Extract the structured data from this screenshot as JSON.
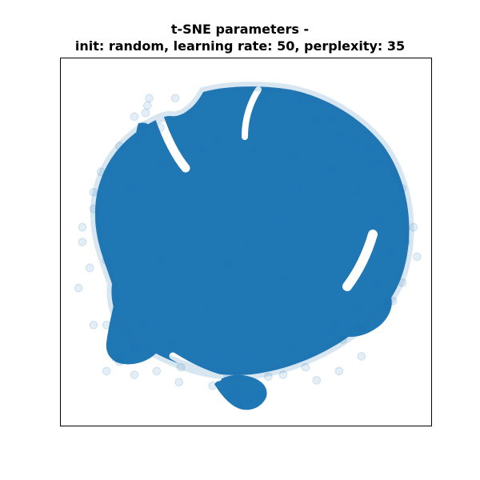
{
  "chart_data": {
    "type": "scatter",
    "title": "t-SNE parameters -\ninit: random, learning rate: 50, perplexity: 35",
    "xlabel": "",
    "ylabel": "",
    "grid": false,
    "legend": "none",
    "axis_ticks": false,
    "series": [
      {
        "color": "#1f77b4",
        "alpha": 0.12,
        "points": [
          [
            -0.15,
            0.55
          ],
          [
            0.05,
            0.5
          ],
          [
            0.25,
            0.48
          ],
          [
            0.45,
            0.4
          ],
          [
            0.6,
            0.28
          ],
          [
            0.72,
            0.12
          ],
          [
            0.78,
            -0.05
          ],
          [
            0.7,
            -0.22
          ],
          [
            0.6,
            -0.35
          ],
          [
            0.45,
            -0.48
          ],
          [
            0.25,
            -0.58
          ],
          [
            0.02,
            -0.62
          ],
          [
            -0.2,
            -0.6
          ],
          [
            -0.4,
            -0.55
          ],
          [
            -0.55,
            -0.45
          ],
          [
            -0.68,
            -0.3
          ],
          [
            -0.75,
            -0.1
          ],
          [
            -0.72,
            0.1
          ],
          [
            -0.62,
            0.28
          ],
          [
            -0.45,
            0.42
          ],
          [
            -0.25,
            0.5
          ],
          [
            0.0,
            0.0
          ],
          [
            0.15,
            0.1
          ],
          [
            -0.1,
            -0.12
          ],
          [
            0.2,
            -0.2
          ],
          [
            -0.3,
            0.15
          ],
          [
            0.4,
            0.05
          ],
          [
            -0.45,
            -0.1
          ],
          [
            0.3,
            0.3
          ],
          [
            -0.2,
            -0.35
          ],
          [
            -0.58,
            0.55
          ],
          [
            -0.55,
            0.63
          ],
          [
            -0.54,
            0.7
          ],
          [
            -0.6,
            0.68
          ],
          [
            -0.52,
            0.78
          ],
          [
            0.48,
            -0.45
          ],
          [
            0.52,
            -0.53
          ],
          [
            0.62,
            -0.46
          ],
          [
            -0.6,
            -0.58
          ],
          [
            -0.68,
            -0.65
          ],
          [
            -0.75,
            -0.7
          ],
          [
            -0.08,
            -0.84
          ],
          [
            -0.03,
            -0.88
          ],
          [
            0.02,
            -0.85
          ],
          [
            0.1,
            0.78
          ],
          [
            0.18,
            0.74
          ],
          [
            0.3,
            0.76
          ],
          [
            0.38,
            0.66
          ],
          [
            0.5,
            0.58
          ],
          [
            0.66,
            0.4
          ],
          [
            0.8,
            0.2
          ],
          [
            0.86,
            0.0
          ],
          [
            0.92,
            -0.08
          ],
          [
            0.84,
            -0.22
          ],
          [
            0.76,
            -0.35
          ],
          [
            0.62,
            -0.62
          ],
          [
            0.5,
            -0.7
          ],
          [
            0.38,
            -0.75
          ],
          [
            0.2,
            -0.72
          ],
          [
            0.08,
            -0.82
          ],
          [
            -0.1,
            -0.72
          ],
          [
            -0.35,
            -0.68
          ],
          [
            -0.48,
            -0.7
          ],
          [
            -0.66,
            -0.62
          ],
          [
            -0.82,
            -0.45
          ],
          [
            -0.9,
            -0.25
          ],
          [
            -0.88,
            0.0
          ],
          [
            -0.82,
            0.18
          ],
          [
            -0.78,
            0.38
          ],
          [
            -0.68,
            0.52
          ],
          [
            -0.46,
            0.62
          ],
          [
            -0.3,
            0.7
          ],
          [
            -0.18,
            0.66
          ],
          [
            0.0,
            0.78
          ],
          [
            -0.75,
            -0.45
          ],
          [
            -0.7,
            -0.63
          ],
          [
            -0.82,
            0.27
          ],
          [
            -0.68,
            0.36
          ],
          [
            0.84,
            0.29
          ],
          [
            0.79,
            -0.32
          ],
          [
            0.9,
            0.08
          ],
          [
            0.72,
            0.44
          ],
          [
            0.45,
            0.66
          ],
          [
            -0.05,
            -0.8
          ],
          [
            0.12,
            -0.73
          ],
          [
            0.32,
            -0.68
          ],
          [
            -0.36,
            -0.76
          ],
          [
            -0.6,
            -0.72
          ],
          [
            -0.53,
            0.74
          ],
          [
            -0.38,
            0.78
          ],
          [
            0.12,
            0.82
          ],
          [
            0.28,
            0.79
          ],
          [
            0.58,
            0.54
          ],
          [
            0.66,
            0.5
          ],
          [
            -0.18,
            -0.78
          ],
          [
            -0.88,
            0.08
          ],
          [
            -0.84,
            -0.14
          ],
          [
            0.8,
            0.34
          ]
        ]
      }
    ]
  }
}
